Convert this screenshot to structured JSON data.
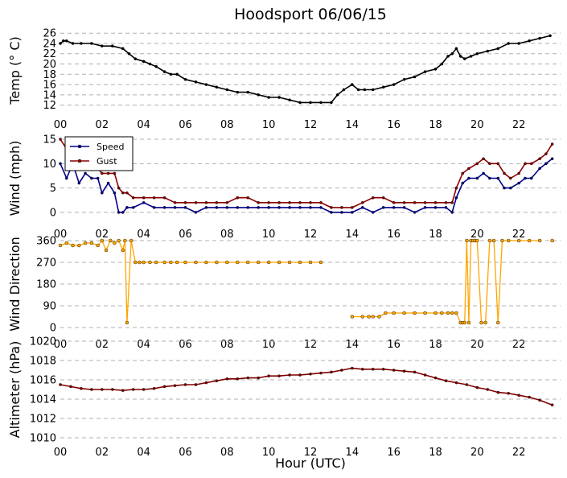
{
  "title": "Hoodsport 06/06/15",
  "xlabel": "Hour (UTC)",
  "xticks": [
    "00",
    "02",
    "04",
    "06",
    "08",
    "10",
    "12",
    "14",
    "16",
    "18",
    "20",
    "22"
  ],
  "chart_data": [
    {
      "type": "line",
      "ylabel": "Temp ($^\\circ$C)",
      "ylabel_display": "Temp (° C)",
      "ylim": [
        11,
        26.5
      ],
      "yticks": [
        12,
        14,
        16,
        18,
        20,
        22,
        24,
        26
      ],
      "grid": "horizontal dashed",
      "series": [
        {
          "color": "#000000",
          "x": [
            0,
            0.15,
            0.3,
            0.6,
            1,
            1.5,
            2,
            2.5,
            3,
            3.3,
            3.6,
            4,
            4.3,
            4.6,
            5,
            5.3,
            5.6,
            6,
            6.5,
            7,
            7.5,
            8,
            8.5,
            9,
            9.5,
            10,
            10.5,
            11,
            11.5,
            12,
            12.5,
            13,
            13.3,
            13.6,
            14,
            14.3,
            14.6,
            15,
            15.5,
            16,
            16.5,
            17,
            17.5,
            18,
            18.3,
            18.6,
            18.8,
            19,
            19.2,
            19.4,
            19.7,
            20,
            20.5,
            21,
            21.5,
            22,
            22.5,
            23,
            23.5
          ],
          "y": [
            24,
            24.5,
            24.5,
            24,
            24,
            24,
            23.5,
            23.5,
            23,
            22,
            21,
            20.5,
            20,
            19.5,
            18.5,
            18,
            18,
            17,
            16.5,
            16,
            15.5,
            15,
            14.5,
            14.5,
            14,
            13.5,
            13.5,
            13,
            12.5,
            12.5,
            12.5,
            12.5,
            14,
            15,
            16,
            15,
            15,
            15,
            15.5,
            16,
            17,
            17.5,
            18.5,
            19,
            20,
            21.5,
            22,
            23,
            21.5,
            21,
            21.5,
            22,
            22.5,
            23,
            24,
            24,
            24.5,
            25,
            25.5
          ]
        }
      ]
    },
    {
      "type": "line",
      "ylabel": "Wind (mph)",
      "ylim": [
        -1.5,
        15.5
      ],
      "yticks": [
        0,
        5,
        10,
        15
      ],
      "legend": "top-left",
      "grid": "horizontal dashed",
      "series": [
        {
          "name": "Speed",
          "color": "#00008b",
          "x": [
            0,
            0.3,
            0.6,
            0.9,
            1.2,
            1.5,
            1.8,
            2,
            2.3,
            2.6,
            2.8,
            3,
            3.2,
            3.5,
            4,
            4.5,
            5,
            5.5,
            6,
            6.5,
            7,
            7.5,
            8,
            8.5,
            9,
            9.5,
            10,
            10.5,
            11,
            11.5,
            12,
            12.5,
            13,
            13.5,
            14,
            14.5,
            15,
            15.5,
            16,
            16.5,
            17,
            17.5,
            18,
            18.5,
            18.8,
            19,
            19.3,
            19.6,
            20,
            20.3,
            20.6,
            21,
            21.3,
            21.6,
            22,
            22.3,
            22.6,
            23,
            23.3,
            23.6
          ],
          "y": [
            10,
            7,
            10,
            6,
            8,
            7,
            7,
            4,
            6,
            4,
            0,
            0,
            1,
            1,
            2,
            1,
            1,
            1,
            1,
            0,
            1,
            1,
            1,
            1,
            1,
            1,
            1,
            1,
            1,
            1,
            1,
            1,
            0,
            0,
            0,
            1,
            0,
            1,
            1,
            1,
            0,
            1,
            1,
            1,
            0,
            3,
            6,
            7,
            7,
            8,
            7,
            7,
            5,
            5,
            6,
            7,
            7,
            9,
            10,
            11
          ]
        },
        {
          "name": "Gust",
          "color": "#8b0000",
          "x": [
            0,
            0.3,
            0.6,
            0.9,
            1.2,
            1.5,
            1.8,
            2,
            2.3,
            2.6,
            2.8,
            3,
            3.2,
            3.5,
            4,
            4.5,
            5,
            5.5,
            6,
            6.5,
            7,
            7.5,
            8,
            8.5,
            9,
            9.5,
            10,
            10.5,
            11,
            11.5,
            12,
            12.5,
            13,
            13.5,
            14,
            14.5,
            15,
            15.5,
            16,
            16.5,
            17,
            17.5,
            18,
            18.5,
            18.8,
            19,
            19.3,
            19.6,
            20,
            20.3,
            20.6,
            21,
            21.3,
            21.6,
            22,
            22.3,
            22.6,
            23,
            23.3,
            23.6
          ],
          "y": [
            15,
            13,
            15,
            9,
            10,
            9,
            9,
            8,
            8,
            8,
            5,
            4,
            4,
            3,
            3,
            3,
            3,
            2,
            2,
            2,
            2,
            2,
            2,
            3,
            3,
            2,
            2,
            2,
            2,
            2,
            2,
            2,
            1,
            1,
            1,
            2,
            3,
            3,
            2,
            2,
            2,
            2,
            2,
            2,
            2,
            5,
            8,
            9,
            10,
            11,
            10,
            10,
            8,
            7,
            8,
            10,
            10,
            11,
            12,
            14
          ]
        }
      ]
    },
    {
      "type": "scatter",
      "ylabel": "Wind Direction",
      "ylim": [
        -10,
        370
      ],
      "yticks": [
        0,
        90,
        180,
        270,
        360
      ],
      "grid": "horizontal dashed",
      "series": [
        {
          "color": "#ffa500",
          "x": [
            0,
            0.3,
            0.6,
            0.9,
            1.2,
            1.5,
            1.8,
            2,
            2.2,
            2.4,
            2.6,
            2.8,
            3,
            3.1,
            3.2,
            3.4,
            3.6,
            3.8,
            4,
            4.3,
            4.6,
            5,
            5.3,
            5.6,
            6,
            6.5,
            7,
            7.5,
            8,
            8.5,
            9,
            9.5,
            10,
            10.5,
            11,
            11.5,
            12,
            12.5,
            14,
            14.5,
            14.8,
            15,
            15.3,
            15.6,
            16,
            16.5,
            17,
            17.5,
            18,
            18.3,
            18.6,
            18.8,
            19,
            19.2,
            19.3,
            19.4,
            19.5,
            19.6,
            19.7,
            19.8,
            19.9,
            20,
            20.2,
            20.4,
            20.6,
            20.8,
            21,
            21.2,
            21.5,
            22,
            22.5,
            23,
            23.6
          ],
          "y": [
            340,
            350,
            340,
            340,
            350,
            350,
            340,
            360,
            320,
            360,
            350,
            360,
            320,
            360,
            20,
            360,
            270,
            270,
            270,
            270,
            270,
            270,
            270,
            270,
            270,
            270,
            270,
            270,
            270,
            270,
            270,
            270,
            270,
            270,
            270,
            270,
            270,
            270,
            45,
            45,
            45,
            45,
            45,
            60,
            60,
            60,
            60,
            60,
            60,
            60,
            60,
            60,
            60,
            20,
            20,
            20,
            360,
            20,
            360,
            360,
            360,
            360,
            20,
            20,
            360,
            360,
            20,
            360,
            360,
            360,
            360,
            360,
            360
          ]
        }
      ]
    },
    {
      "type": "line",
      "ylabel": "Altimeter (hPa)",
      "ylim": [
        1010,
        1020
      ],
      "yticks": [
        1010,
        1012,
        1014,
        1016,
        1018,
        1020
      ],
      "grid": "horizontal dashed",
      "series": [
        {
          "color": "#800000",
          "x": [
            0,
            0.5,
            1,
            1.5,
            2,
            2.5,
            3,
            3.5,
            4,
            4.5,
            5,
            5.5,
            6,
            6.5,
            7,
            7.5,
            8,
            8.5,
            9,
            9.5,
            10,
            10.5,
            11,
            11.5,
            12,
            12.5,
            13,
            13.5,
            14,
            14.5,
            15,
            15.5,
            16,
            16.5,
            17,
            17.5,
            18,
            18.5,
            19,
            19.5,
            20,
            20.5,
            21,
            21.5,
            22,
            22.5,
            23,
            23.6
          ],
          "y": [
            1015.5,
            1015.3,
            1015.1,
            1015.0,
            1015.0,
            1015.0,
            1014.9,
            1015.0,
            1015.0,
            1015.1,
            1015.3,
            1015.4,
            1015.5,
            1015.5,
            1015.7,
            1015.9,
            1016.1,
            1016.1,
            1016.2,
            1016.2,
            1016.4,
            1016.4,
            1016.5,
            1016.5,
            1016.6,
            1016.7,
            1016.8,
            1017.0,
            1017.2,
            1017.1,
            1017.1,
            1017.1,
            1017.0,
            1016.9,
            1016.8,
            1016.5,
            1016.2,
            1015.9,
            1015.7,
            1015.5,
            1015.2,
            1015.0,
            1014.7,
            1014.6,
            1014.4,
            1014.2,
            1013.9,
            1013.4
          ]
        }
      ]
    }
  ]
}
